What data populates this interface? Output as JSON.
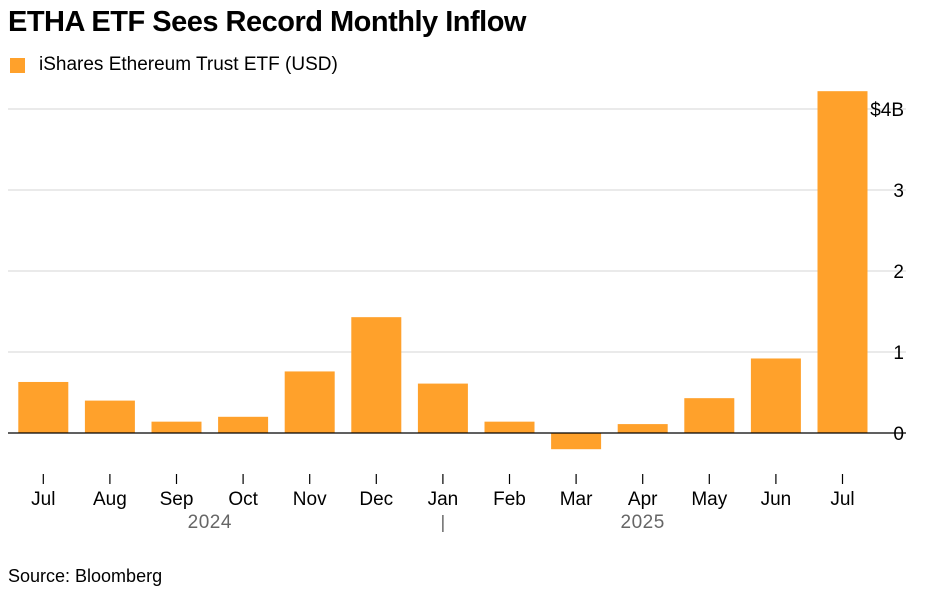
{
  "header": {
    "title": "ETHA ETF Sees Record Monthly Inflow",
    "legend_label": "iShares Ethereum Trust ETF (USD)"
  },
  "footer": {
    "source": "Source: Bloomberg"
  },
  "colors": {
    "bar": "#FFA12B",
    "grid": "#d5d5d5",
    "axis": "#000000",
    "year_label": "#666666"
  },
  "chart_data": {
    "type": "bar",
    "title": "ETHA ETF Sees Record Monthly Inflow",
    "categories": [
      "Jul",
      "Aug",
      "Sep",
      "Oct",
      "Nov",
      "Dec",
      "Jan",
      "Feb",
      "Mar",
      "Apr",
      "May",
      "Jun",
      "Jul"
    ],
    "series": [
      {
        "name": "iShares Ethereum Trust ETF (USD)",
        "values": [
          0.63,
          0.4,
          0.14,
          0.2,
          0.76,
          1.43,
          0.61,
          0.14,
          -0.2,
          0.11,
          0.43,
          0.92,
          4.22
        ]
      }
    ],
    "ylim": [
      -0.2,
      4.2
    ],
    "yticks": [
      0,
      1,
      2,
      3,
      4
    ],
    "ytick_labels": [
      "0",
      "1",
      "2",
      "3",
      "$4B"
    ],
    "y_axis_side": "right",
    "grid": true,
    "legend": "top-left",
    "year_labels": [
      {
        "label": "2024",
        "categories": [
          "Jul",
          "Aug",
          "Sep",
          "Oct",
          "Nov",
          "Dec"
        ]
      },
      {
        "label": "2025",
        "categories": [
          "Jan",
          "Feb",
          "Mar",
          "Apr",
          "May",
          "Jun",
          "Jul"
        ]
      }
    ]
  }
}
